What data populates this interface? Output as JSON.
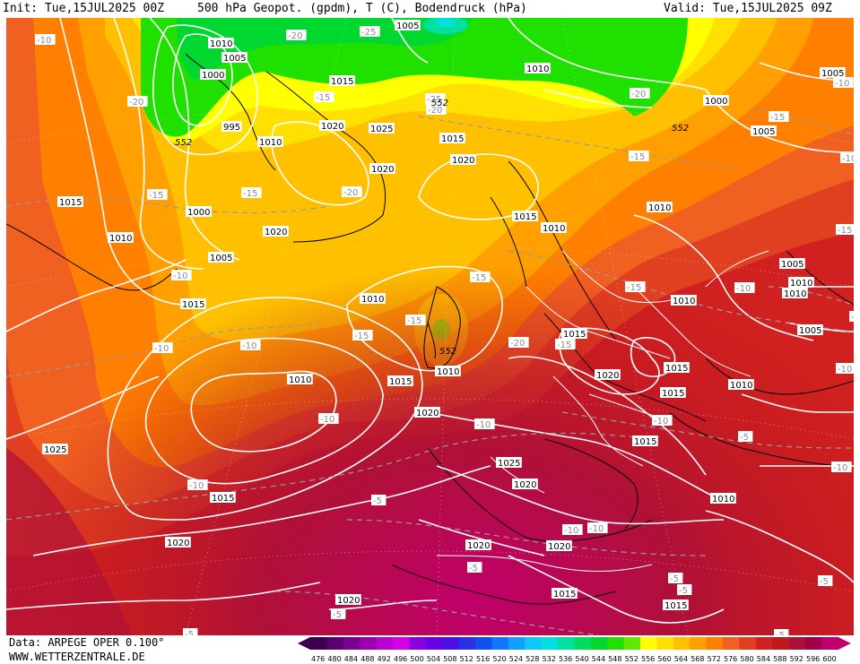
{
  "header": {
    "init": "Init: Tue,15JUL2025 00Z",
    "title": "500 hPa Geopot. (gpdm), T (C), Bodendruck (hPa)",
    "valid": "Valid: Tue,15JUL2025 09Z"
  },
  "footer": {
    "data_source": "Data: ARPEGE OPER 0.100°",
    "website": "WWW.WETTERZENTRALE.DE"
  },
  "legend": {
    "values": [
      "476",
      "480",
      "484",
      "488",
      "492",
      "496",
      "500",
      "504",
      "508",
      "512",
      "516",
      "520",
      "524",
      "528",
      "532",
      "536",
      "540",
      "544",
      "548",
      "552",
      "556",
      "560",
      "564",
      "568",
      "572",
      "576",
      "580",
      "584",
      "588",
      "592",
      "596",
      "600"
    ],
    "colors": [
      "#3d0050",
      "#5a0070",
      "#7a0090",
      "#9a00b0",
      "#ba00d0",
      "#d400e6",
      "#8a00e0",
      "#6a00e6",
      "#4a10e6",
      "#2a30e6",
      "#1050f0",
      "#1078ff",
      "#10a0ff",
      "#10c8ff",
      "#00e0e0",
      "#00e0a0",
      "#00dc60",
      "#00d830",
      "#20e000",
      "#60e800",
      "#ffff00",
      "#ffe000",
      "#ffc000",
      "#ffa000",
      "#ff8000",
      "#f06020",
      "#e04020",
      "#d02020",
      "#c01818",
      "#b01038",
      "#a00048",
      "#c0006c"
    ]
  },
  "pressure_labels": [
    "1005",
    "1010",
    "1000",
    "995",
    "1015",
    "1020",
    "1025",
    "1015",
    "1010",
    "1005",
    "1020",
    "1025",
    "1015",
    "1010",
    "1000",
    "1005",
    "1010",
    "1015",
    "1020",
    "1025",
    "1020",
    "1015",
    "1010",
    "1005",
    "1000"
  ],
  "isobar_labels": [
    {
      "text": "1005"
    },
    {
      "text": "1010"
    },
    {
      "text": "1005"
    },
    {
      "text": "1000"
    },
    {
      "text": "995"
    },
    {
      "text": "1010"
    },
    {
      "text": "1015"
    },
    {
      "text": "1020"
    },
    {
      "text": "1025"
    },
    {
      "text": "1020"
    },
    {
      "text": "1015"
    },
    {
      "text": "1010"
    },
    {
      "text": "1010"
    },
    {
      "text": "1015"
    },
    {
      "text": "1000"
    },
    {
      "text": "1010"
    },
    {
      "text": "1005"
    },
    {
      "text": "1015"
    },
    {
      "text": "1020"
    },
    {
      "text": "1015"
    },
    {
      "text": "1010"
    },
    {
      "text": "1015"
    },
    {
      "text": "1020"
    },
    {
      "text": "1010"
    },
    {
      "text": "1015"
    },
    {
      "text": "1010"
    },
    {
      "text": "1005"
    },
    {
      "text": "1010"
    },
    {
      "text": "1010"
    },
    {
      "text": "1005"
    },
    {
      "text": "1000"
    },
    {
      "text": "1010"
    },
    {
      "text": "1020"
    },
    {
      "text": "1015"
    },
    {
      "text": "1015"
    },
    {
      "text": "1010"
    },
    {
      "text": "1005"
    },
    {
      "text": "1005"
    },
    {
      "text": "1025"
    },
    {
      "text": "1025"
    },
    {
      "text": "1020"
    },
    {
      "text": "1015"
    },
    {
      "text": "1010"
    },
    {
      "text": "1020"
    },
    {
      "text": "1020"
    },
    {
      "text": "1015"
    },
    {
      "text": "1020"
    },
    {
      "text": "1015"
    },
    {
      "text": "1020"
    },
    {
      "text": "1020"
    },
    {
      "text": "1010"
    },
    {
      "text": "1015"
    }
  ],
  "temperature_labels": [
    {
      "text": "-10"
    },
    {
      "text": "-20"
    },
    {
      "text": "-25"
    },
    {
      "text": "-20"
    },
    {
      "text": "-15"
    },
    {
      "text": "-25"
    },
    {
      "text": "-20"
    },
    {
      "text": "-20"
    },
    {
      "text": "-10"
    },
    {
      "text": "-15"
    },
    {
      "text": "-15"
    },
    {
      "text": "-20"
    },
    {
      "text": "-15"
    },
    {
      "text": "-15"
    },
    {
      "text": "-10"
    },
    {
      "text": "-15"
    },
    {
      "text": "-10"
    },
    {
      "text": "-10"
    },
    {
      "text": "-15"
    },
    {
      "text": "-15"
    },
    {
      "text": "-15"
    },
    {
      "text": "-20"
    },
    {
      "text": "-15"
    },
    {
      "text": "-10"
    },
    {
      "text": "-15"
    },
    {
      "text": "-10"
    },
    {
      "text": "-10"
    },
    {
      "text": "-10"
    },
    {
      "text": "-10"
    },
    {
      "text": "-5"
    },
    {
      "text": "-5"
    },
    {
      "text": "-5"
    },
    {
      "text": "-10"
    },
    {
      "text": "-5"
    },
    {
      "text": "-5"
    },
    {
      "text": "-5"
    },
    {
      "text": "-10"
    },
    {
      "text": "-10"
    },
    {
      "text": "-10"
    },
    {
      "text": "-10"
    },
    {
      "text": "-5"
    },
    {
      "text": "-5"
    },
    {
      "text": "-5"
    },
    {
      "text": "-10"
    }
  ],
  "geopot_labels": [
    {
      "text": "552"
    },
    {
      "text": "552"
    },
    {
      "text": "552"
    },
    {
      "text": "552"
    }
  ],
  "colors": {
    "isobar": "#ffffff",
    "isotherm": "#9a9a9a",
    "coastline": "#000000",
    "border": "#ffffff"
  }
}
